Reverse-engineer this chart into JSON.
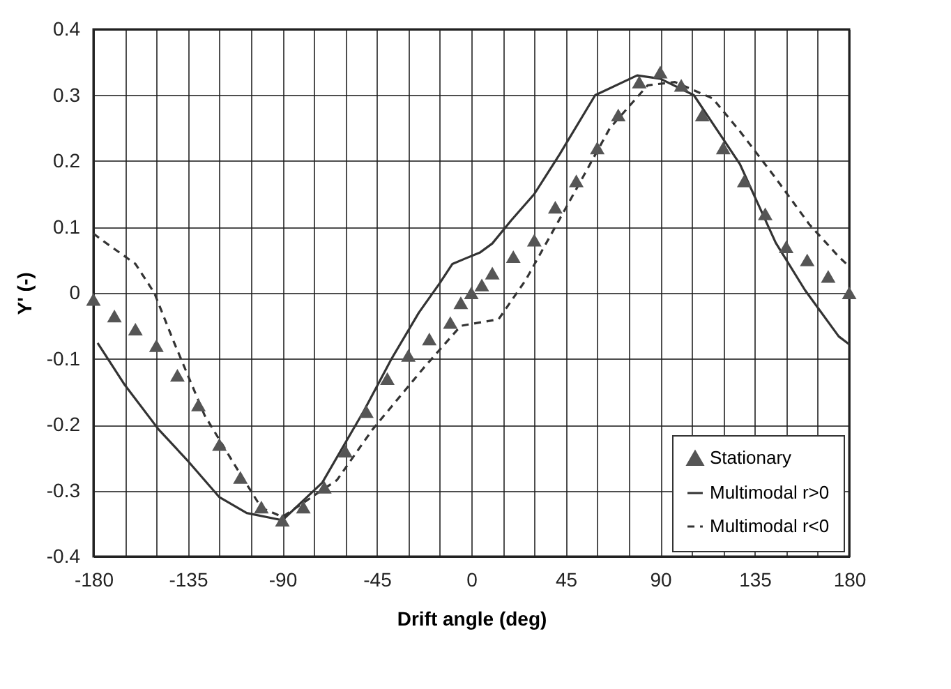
{
  "chart_data": {
    "type": "line",
    "xlabel": "Drift angle (deg)",
    "ylabel": "Y' (-)",
    "xlim": [
      -180,
      180
    ],
    "ylim": [
      -0.4,
      0.4
    ],
    "xticks": [
      -180,
      {
        "value": -165,
        "label": null
      },
      {
        "value": -150,
        "label": null
      },
      -135,
      {
        "value": -120,
        "label": null
      },
      {
        "value": -105,
        "label": null
      },
      -90,
      {
        "value": -75,
        "label": null
      },
      {
        "value": -60,
        "label": null
      },
      -45,
      {
        "value": -30,
        "label": null
      },
      {
        "value": -15,
        "label": null
      },
      0,
      {
        "value": 15,
        "label": null
      },
      {
        "value": 30,
        "label": null
      },
      45,
      {
        "value": 60,
        "label": null
      },
      {
        "value": 75,
        "label": null
      },
      90,
      {
        "value": 105,
        "label": null
      },
      {
        "value": 120,
        "label": null
      },
      135,
      {
        "value": 150,
        "label": null
      },
      {
        "value": 165,
        "label": null
      },
      180
    ],
    "yticks": [
      -0.4,
      -0.3,
      -0.2,
      -0.1,
      0,
      0.1,
      0.2,
      0.3,
      0.4
    ],
    "grid": true,
    "legend": "bottom right",
    "series": [
      {
        "name": "Stationary",
        "type": "scatter",
        "marker": "triangle",
        "color": "#555555",
        "x": [
          -180,
          -170,
          -160,
          -150,
          -140,
          -130,
          -120,
          -110,
          -100,
          -90,
          -80,
          -70,
          -60,
          -50,
          -40,
          -30,
          -20,
          -10,
          -5,
          0,
          5,
          10,
          20,
          30,
          40,
          50,
          60,
          70,
          80,
          90,
          100,
          110,
          120,
          130,
          140,
          150,
          160,
          170,
          180
        ],
        "values": [
          -0.01,
          -0.035,
          -0.055,
          -0.08,
          -0.125,
          -0.17,
          -0.23,
          -0.28,
          -0.325,
          -0.345,
          -0.325,
          -0.295,
          -0.24,
          -0.18,
          -0.13,
          -0.095,
          -0.07,
          -0.045,
          -0.015,
          0.0,
          0.012,
          0.03,
          0.055,
          0.08,
          0.13,
          0.17,
          0.22,
          0.27,
          0.32,
          0.335,
          0.315,
          0.27,
          0.22,
          0.17,
          0.12,
          0.07,
          0.05,
          0.025,
          0.0
        ]
      },
      {
        "name": "Multimodal r>0",
        "line_style": "solid",
        "marker": "none",
        "color": "#333333",
        "x": [
          -178,
          -165,
          -149,
          -135,
          -120,
          -107,
          -90,
          -71,
          -51,
          -38,
          -25,
          -15,
          -9,
          -3,
          4,
          10,
          19,
          30,
          42,
          59,
          79,
          90,
          106,
          128,
          145,
          159,
          175,
          180
        ],
        "values": [
          -0.076,
          -0.14,
          -0.207,
          -0.255,
          -0.31,
          -0.334,
          -0.345,
          -0.288,
          -0.178,
          -0.1,
          -0.03,
          0.015,
          0.044,
          0.052,
          0.061,
          0.075,
          0.11,
          0.15,
          0.21,
          0.3,
          0.33,
          0.325,
          0.3,
          0.195,
          0.076,
          0.004,
          -0.066,
          -0.078
        ]
      },
      {
        "name": "Multimodal r<0",
        "line_style": "dashed",
        "marker": "none",
        "color": "#333333",
        "x": [
          -180,
          -175,
          -160,
          -151,
          -142,
          -127,
          -111,
          -100,
          -90,
          -64,
          -47,
          -23,
          -5,
          13,
          26,
          48,
          66,
          84,
          97,
          115,
          128,
          145,
          161,
          175,
          180
        ],
        "values": [
          0.09,
          0.078,
          0.044,
          0.0,
          -0.072,
          -0.186,
          -0.27,
          -0.326,
          -0.34,
          -0.284,
          -0.207,
          -0.115,
          -0.05,
          -0.04,
          0.02,
          0.146,
          0.25,
          0.315,
          0.32,
          0.295,
          0.245,
          0.174,
          0.104,
          0.055,
          0.04
        ]
      }
    ]
  }
}
